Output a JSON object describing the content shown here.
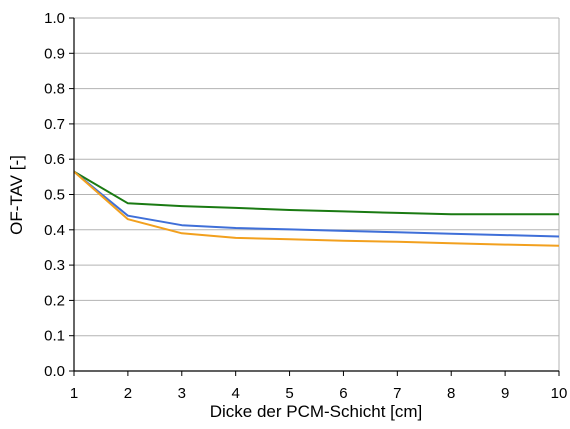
{
  "chart_data": {
    "type": "line",
    "title": "",
    "xlabel": "Dicke der PCM-Schicht [cm]",
    "ylabel": "OF-TAV [-]",
    "x": [
      1,
      2,
      3,
      4,
      5,
      6,
      7,
      8,
      9,
      10
    ],
    "xlim": [
      1,
      10
    ],
    "ylim": [
      0.0,
      1.0
    ],
    "xticks": [
      "1",
      "2",
      "3",
      "4",
      "5",
      "6",
      "7",
      "8",
      "9",
      "10"
    ],
    "yticks": [
      "0.0",
      "0.1",
      "0.2",
      "0.3",
      "0.4",
      "0.5",
      "0.6",
      "0.7",
      "0.8",
      "0.9",
      "1.0"
    ],
    "ytick_values": [
      0.0,
      0.1,
      0.2,
      0.3,
      0.4,
      0.5,
      0.6,
      0.7,
      0.8,
      0.9,
      1.0
    ],
    "grid": "horizontal",
    "legend": "none",
    "series": [
      {
        "color": "#1a7a12",
        "values": [
          0.565,
          0.475,
          0.467,
          0.462,
          0.456,
          0.452,
          0.448,
          0.444,
          0.444,
          0.444
        ]
      },
      {
        "color": "#3f6fd8",
        "values": [
          0.565,
          0.44,
          0.413,
          0.405,
          0.401,
          0.397,
          0.393,
          0.389,
          0.385,
          0.381
        ]
      },
      {
        "color": "#f2a01e",
        "values": [
          0.565,
          0.43,
          0.39,
          0.377,
          0.373,
          0.369,
          0.366,
          0.362,
          0.358,
          0.355
        ]
      }
    ]
  }
}
